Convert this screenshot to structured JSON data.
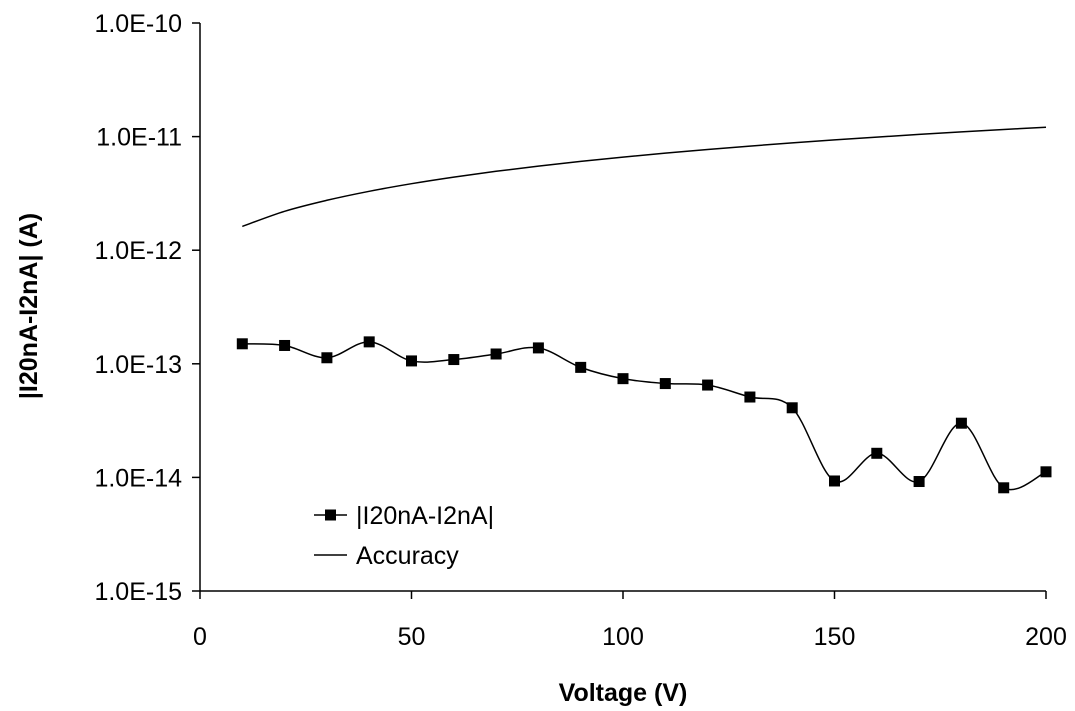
{
  "chart_data": {
    "type": "line",
    "title": "",
    "xlabel": "Voltage (V)",
    "ylabel": "|I20nA-I2nA| (A)",
    "xlim": [
      0,
      200
    ],
    "ylim": [
      1e-15,
      1e-10
    ],
    "yscale": "log",
    "grid": false,
    "legend_position": "bottom-left",
    "x_ticks": [
      0,
      50,
      100,
      150,
      200
    ],
    "x_tick_labels": [
      "0",
      "50",
      "100",
      "150",
      "200"
    ],
    "y_ticks": [
      1e-15,
      1e-14,
      1e-13,
      1e-12,
      1e-11,
      1e-10
    ],
    "y_tick_labels": [
      "1.0E-15",
      "1.0E-14",
      "1.0E-13",
      "1.0E-12",
      "1.0E-11",
      "1.0E-10"
    ],
    "series": [
      {
        "name": "|I20nA-I2nA|",
        "marker": "square",
        "smooth": true,
        "color": "#000000",
        "x": [
          10,
          20,
          30,
          40,
          50,
          60,
          70,
          80,
          90,
          100,
          110,
          120,
          130,
          140,
          150,
          160,
          170,
          180,
          190,
          200
        ],
        "y": [
          1.5e-13,
          1.45e-13,
          1.13e-13,
          1.56e-13,
          1.06e-13,
          1.09e-13,
          1.22e-13,
          1.38e-13,
          9.3e-14,
          7.4e-14,
          6.7e-14,
          6.5e-14,
          5.1e-14,
          4.1e-14,
          9.3e-15,
          1.63e-14,
          9.2e-15,
          3e-14,
          8.1e-15,
          1.12e-14
        ]
      },
      {
        "name": "Accuracy",
        "marker": "none",
        "smooth": true,
        "color": "#000000",
        "x": [
          10,
          20,
          30,
          40,
          50,
          60,
          70,
          80,
          90,
          100,
          110,
          120,
          130,
          140,
          150,
          160,
          170,
          180,
          190,
          200
        ],
        "y": [
          1.62e-12,
          2.2e-12,
          2.75e-12,
          3.3e-12,
          3.85e-12,
          4.4e-12,
          4.95e-12,
          5.5e-12,
          6.05e-12,
          6.6e-12,
          7.15e-12,
          7.7e-12,
          8.25e-12,
          8.8e-12,
          9.35e-12,
          9.9e-12,
          1.045e-11,
          1.1e-11,
          1.155e-11,
          1.21e-11
        ]
      }
    ]
  }
}
